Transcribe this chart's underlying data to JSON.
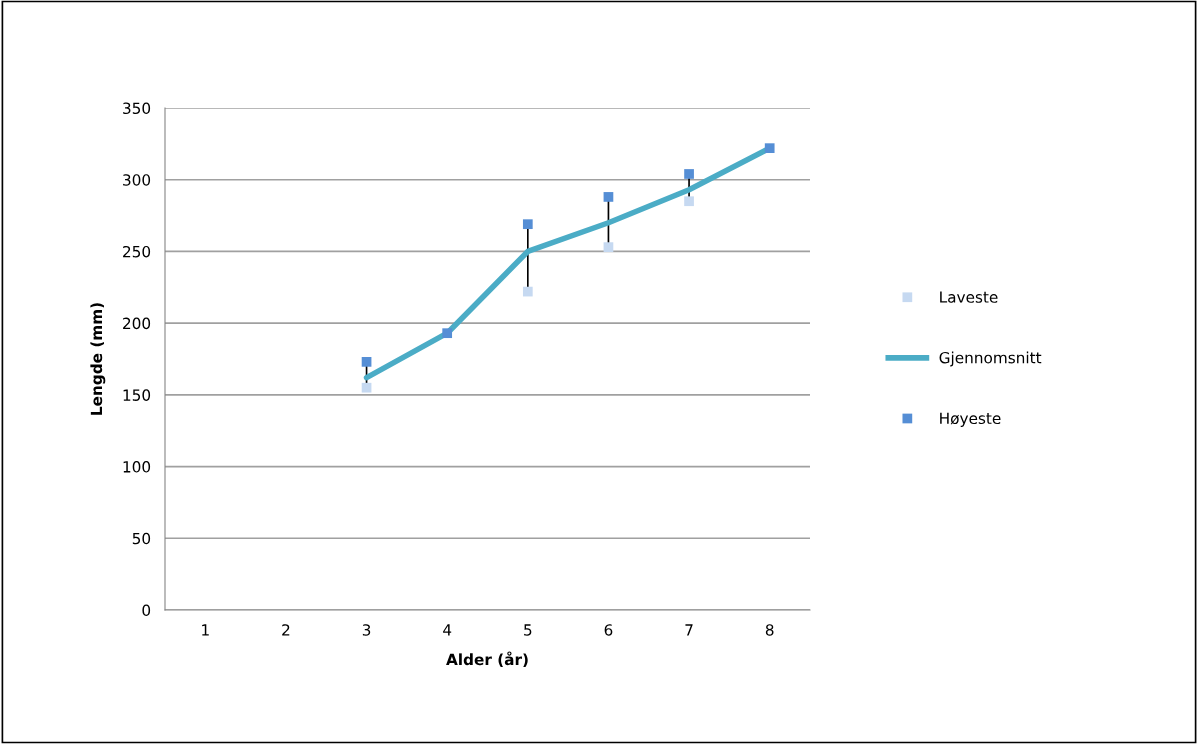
{
  "chart_data": {
    "type": "line",
    "xlabel": "Alder (år)",
    "ylabel": "Lengde (mm)",
    "categories": [
      "1",
      "2",
      "3",
      "4",
      "5",
      "6",
      "7",
      "8"
    ],
    "series": [
      {
        "name": "Laveste",
        "type": "scatter",
        "marker": "square",
        "color": "#c6d9f1",
        "values": [
          null,
          null,
          155,
          null,
          222,
          253,
          285,
          null
        ]
      },
      {
        "name": "Gjennomsnitt",
        "type": "line",
        "marker": "none",
        "color": "#4bacc6",
        "values": [
          null,
          null,
          162,
          193,
          250,
          270,
          293,
          322
        ]
      },
      {
        "name": "Høyeste",
        "type": "scatter",
        "marker": "square",
        "color": "#558ed5",
        "values": [
          null,
          null,
          173,
          193,
          269,
          288,
          304,
          322
        ]
      }
    ],
    "ylim": [
      0,
      350
    ],
    "yticks": [
      0,
      50,
      100,
      150,
      200,
      250,
      300,
      350
    ],
    "grid": "y",
    "legend": "right"
  }
}
